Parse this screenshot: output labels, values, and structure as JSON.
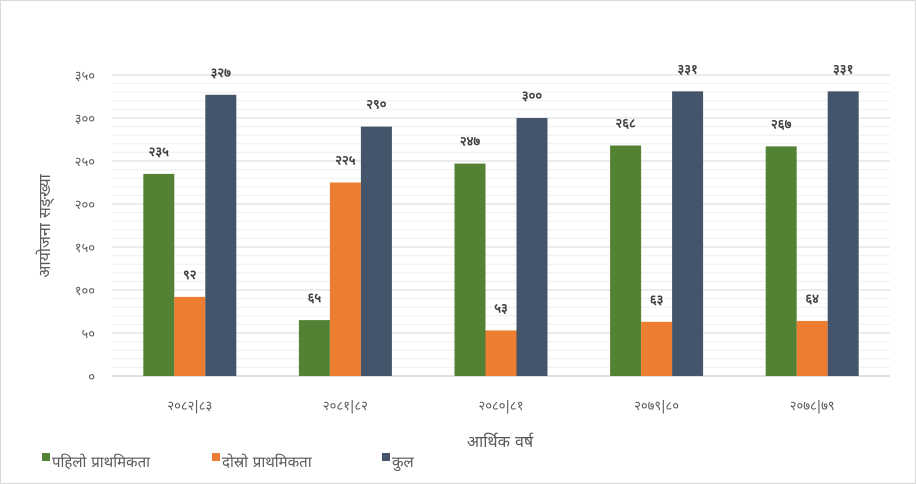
{
  "chart_data": {
    "type": "bar",
    "title": "",
    "xlabel": "आर्थिक वर्ष",
    "ylabel": "आयोजना सङ्ख्या",
    "ylim": [
      0,
      350
    ],
    "yticks": [
      0,
      50,
      100,
      150,
      200,
      250,
      300,
      350
    ],
    "ytick_labels": [
      "०",
      "५०",
      "१००",
      "१५०",
      "२००",
      "२५०",
      "३००",
      "३५०"
    ],
    "grid": true,
    "legend_placement": "bottom-left",
    "categories": [
      "२०८२|८३",
      "२०८१|८२",
      "२०८०|८१",
      "२०७९|८०",
      "२०७८|७९"
    ],
    "series": [
      {
        "name": "पहिलो प्राथमिकता",
        "color": "#548235",
        "values": [
          235,
          65,
          247,
          268,
          267
        ],
        "labels": [
          "२३५",
          "६५",
          "२४७",
          "२६८",
          "२६७"
        ]
      },
      {
        "name": "दोस्रो प्राथमिकता",
        "color": "#ed7d31",
        "values": [
          92,
          225,
          53,
          63,
          64
        ],
        "labels": [
          "९२",
          "२२५",
          "५३",
          "६३",
          "६४"
        ]
      },
      {
        "name": "कुल",
        "color": "#44546a",
        "values": [
          327,
          290,
          300,
          331,
          331
        ],
        "labels": [
          "३२७",
          "२९०",
          "३००",
          "३३१",
          "३३१"
        ]
      }
    ]
  }
}
